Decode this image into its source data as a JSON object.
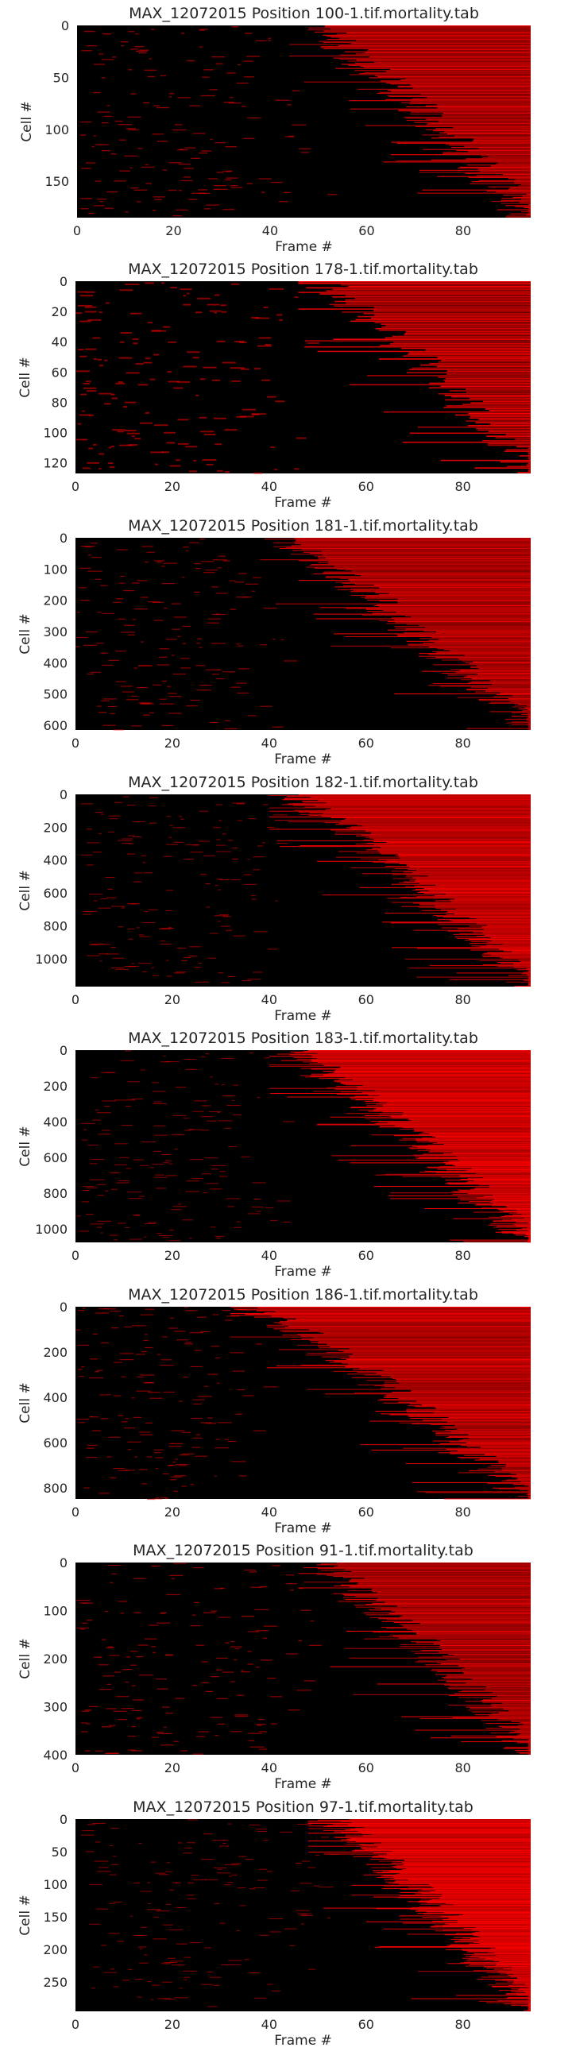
{
  "figure": {
    "background": "#ffffff",
    "mark_color": "#ff0000",
    "empty_color": "#000000"
  },
  "chart_data": [
    {
      "type": "heatmap",
      "title": "MAX_12072015 Position 100-1.tif.mortality.tab",
      "xlabel": "Frame #",
      "ylabel": "Cell #",
      "x_ticks": [
        0,
        20,
        40,
        60,
        80
      ],
      "y_ticks": [
        0,
        50,
        100,
        150
      ],
      "xlim": [
        0,
        94
      ],
      "ylim": [
        0,
        185
      ],
      "n_frames": 94,
      "n_cells": 185,
      "death_frame_range": [
        48,
        94
      ],
      "grid": false,
      "colorbar": false
    },
    {
      "type": "heatmap",
      "title": "MAX_12072015 Position 178-1.tif.mortality.tab",
      "xlabel": "Frame #",
      "ylabel": "Cell #",
      "x_ticks": [
        0,
        20,
        40,
        60,
        80
      ],
      "y_ticks": [
        0,
        20,
        40,
        60,
        80,
        100,
        120
      ],
      "xlim": [
        0,
        94
      ],
      "ylim": [
        0,
        127
      ],
      "n_frames": 94,
      "n_cells": 127,
      "death_frame_range": [
        50,
        94
      ],
      "grid": false,
      "colorbar": false
    },
    {
      "type": "heatmap",
      "title": "MAX_12072015 Position 181-1.tif.mortality.tab",
      "xlabel": "Frame #",
      "ylabel": "Cell #",
      "x_ticks": [
        0,
        20,
        40,
        60,
        80
      ],
      "y_ticks": [
        0,
        100,
        200,
        300,
        400,
        500,
        600
      ],
      "xlim": [
        0,
        94
      ],
      "ylim": [
        0,
        615
      ],
      "n_frames": 94,
      "n_cells": 615,
      "death_frame_range": [
        42,
        94
      ],
      "grid": false,
      "colorbar": false
    },
    {
      "type": "heatmap",
      "title": "MAX_12072015 Position 182-1.tif.mortality.tab",
      "xlabel": "Frame #",
      "ylabel": "Cell #",
      "x_ticks": [
        0,
        20,
        40,
        60,
        80
      ],
      "y_ticks": [
        0,
        200,
        400,
        600,
        800,
        1000
      ],
      "xlim": [
        0,
        94
      ],
      "ylim": [
        0,
        1170
      ],
      "n_frames": 94,
      "n_cells": 1170,
      "death_frame_range": [
        44,
        94
      ],
      "grid": false,
      "colorbar": false
    },
    {
      "type": "heatmap",
      "title": "MAX_12072015 Position 183-1.tif.mortality.tab",
      "xlabel": "Frame #",
      "ylabel": "Cell #",
      "x_ticks": [
        0,
        20,
        40,
        60,
        80
      ],
      "y_ticks": [
        0,
        200,
        400,
        600,
        800,
        1000
      ],
      "xlim": [
        0,
        94
      ],
      "ylim": [
        0,
        1075
      ],
      "n_frames": 94,
      "n_cells": 1075,
      "death_frame_range": [
        44,
        94
      ],
      "grid": false,
      "colorbar": false
    },
    {
      "type": "heatmap",
      "title": "MAX_12072015 Position 186-1.tif.mortality.tab",
      "xlabel": "Frame #",
      "ylabel": "Cell #",
      "x_ticks": [
        0,
        20,
        40,
        60,
        80
      ],
      "y_ticks": [
        0,
        200,
        400,
        600,
        800
      ],
      "xlim": [
        0,
        94
      ],
      "ylim": [
        0,
        850
      ],
      "n_frames": 94,
      "n_cells": 850,
      "death_frame_range": [
        36,
        94
      ],
      "grid": false,
      "colorbar": false
    },
    {
      "type": "heatmap",
      "title": "MAX_12072015 Position 91-1.tif.mortality.tab",
      "xlabel": "Frame #",
      "ylabel": "Cell #",
      "x_ticks": [
        0,
        20,
        40,
        60,
        80
      ],
      "y_ticks": [
        0,
        100,
        200,
        300,
        400
      ],
      "xlim": [
        0,
        94
      ],
      "ylim": [
        0,
        400
      ],
      "n_frames": 94,
      "n_cells": 400,
      "death_frame_range": [
        50,
        94
      ],
      "grid": false,
      "colorbar": false
    },
    {
      "type": "heatmap",
      "title": "MAX_12072015 Position 97-1.tif.mortality.tab",
      "xlabel": "Frame #",
      "ylabel": "Cell #",
      "x_ticks": [
        0,
        20,
        40,
        60,
        80
      ],
      "y_ticks": [
        0,
        50,
        100,
        150,
        200,
        250
      ],
      "xlim": [
        0,
        94
      ],
      "ylim": [
        0,
        295
      ],
      "n_frames": 94,
      "n_cells": 295,
      "death_frame_range": [
        52,
        94
      ],
      "grid": false,
      "colorbar": false
    }
  ]
}
